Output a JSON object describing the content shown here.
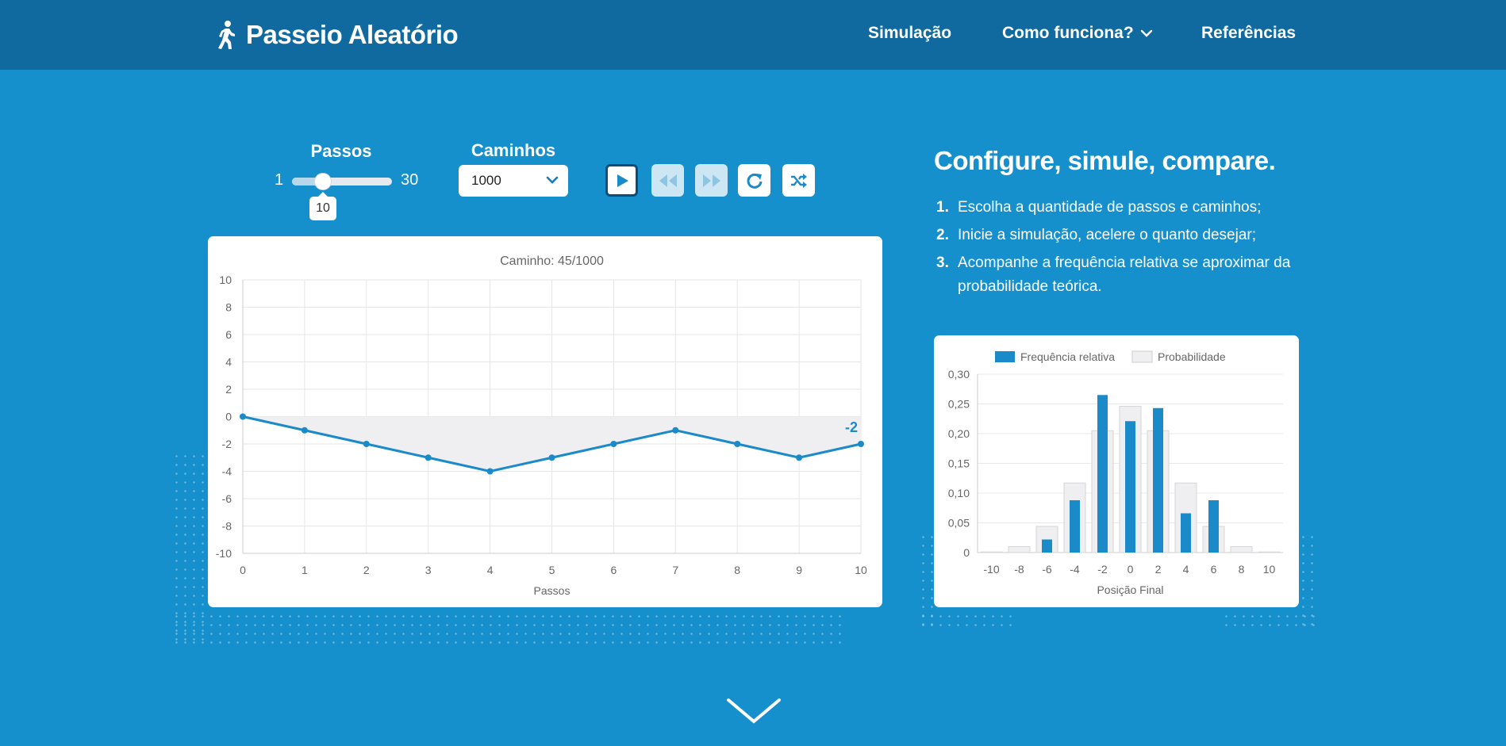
{
  "nav": {
    "brand": "Passeio Aleatório",
    "items": [
      "Simulação",
      "Como funciona?",
      "Referências"
    ]
  },
  "controls": {
    "steps_label": "Passos",
    "steps_min": "1",
    "steps_max": "30",
    "steps_value": "10",
    "steps_fraction": 0.31,
    "paths_label": "Caminhos",
    "paths_value": "1000",
    "buttons": [
      "play-icon",
      "rewind-icon",
      "fast-forward-icon",
      "reset-icon",
      "shuffle-icon"
    ]
  },
  "intro": {
    "headline": "Configure, simule, compare.",
    "steps": [
      {
        "num": "1.",
        "text": "Escolha a quantidade de passos e caminhos;"
      },
      {
        "num": "2.",
        "text": "Inicie a simulação, acelere o quanto desejar;"
      },
      {
        "num": "3.",
        "text": "Acompanhe a frequência relativa se aproximar da probabilidade teórica."
      }
    ]
  },
  "colors": {
    "background": "#1590cc",
    "navbar": "#106aa0",
    "accent": "#1a8ac9",
    "prob_fill": "#efeff1"
  },
  "chart_data": [
    {
      "type": "line",
      "title": "Caminho: 45/1000",
      "xlabel": "Passos",
      "ylabel": "",
      "x": [
        0,
        1,
        2,
        3,
        4,
        5,
        6,
        7,
        8,
        9,
        10
      ],
      "values": [
        0,
        -1,
        -2,
        -3,
        -4,
        -3,
        -2,
        -1,
        -2,
        -3,
        -2
      ],
      "xlim": [
        0,
        10
      ],
      "ylim": [
        -10,
        10
      ],
      "yticks": [
        10,
        8,
        6,
        4,
        2,
        0,
        -2,
        -4,
        -6,
        -8,
        -10
      ],
      "end_label": "-2",
      "grid": true
    },
    {
      "type": "bar",
      "xlabel": "Posição Final",
      "legend": [
        "Frequência relativa",
        "Probabilidade"
      ],
      "legend_position": "top",
      "categories": [
        "-10",
        "-8",
        "-6",
        "-4",
        "-2",
        "0",
        "2",
        "4",
        "6",
        "8",
        "10"
      ],
      "series": [
        {
          "name": "Frequência relativa",
          "values": [
            0,
            0,
            0.022,
            0.088,
            0.265,
            0.221,
            0.243,
            0.066,
            0.088,
            0,
            0
          ]
        },
        {
          "name": "Probabilidade",
          "values": [
            0.001,
            0.01,
            0.044,
            0.117,
            0.205,
            0.246,
            0.205,
            0.117,
            0.044,
            0.01,
            0.001
          ]
        }
      ],
      "ylim": [
        0,
        0.3
      ],
      "yticks": [
        "0,30",
        "0,25",
        "0,20",
        "0,15",
        "0,10",
        "0,05",
        "0"
      ],
      "grid": true
    }
  ]
}
